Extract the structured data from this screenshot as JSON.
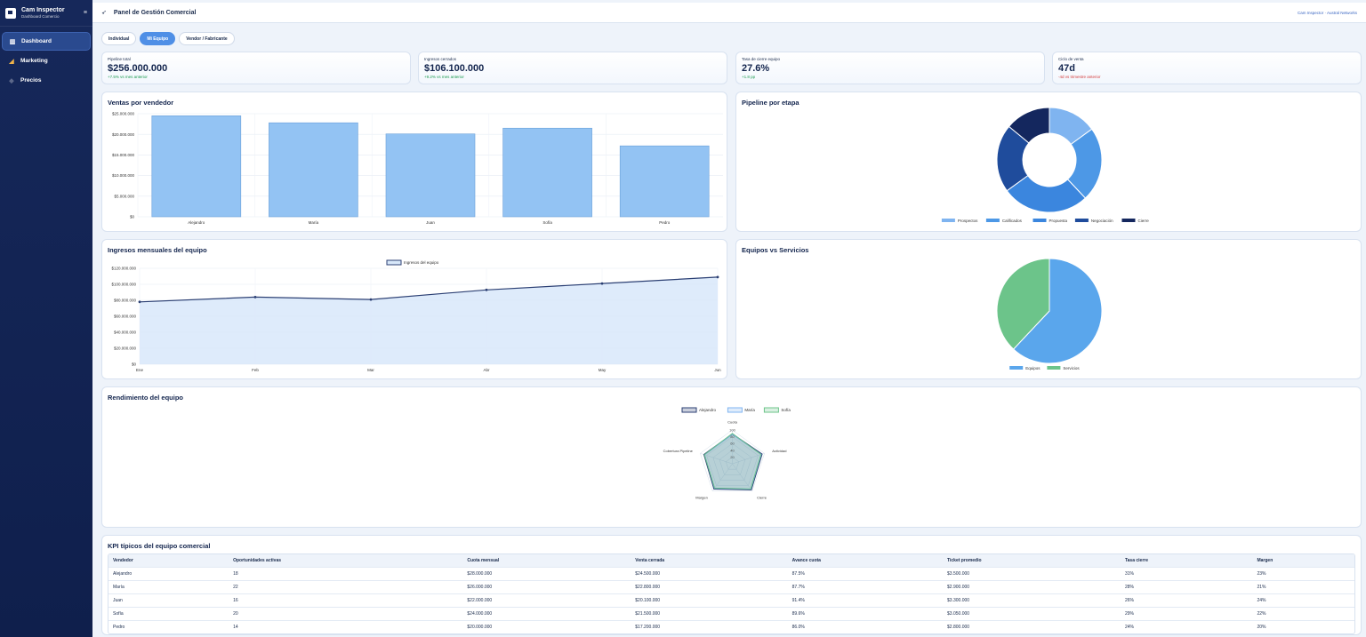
{
  "sidebar": {
    "brand_title": "Cam Inspector",
    "brand_sub": "Dashboard Comercio",
    "menu_icon": "hamburger-icon",
    "items": [
      {
        "label": "Dashboard",
        "icon": "bar-chart-icon",
        "active": true
      },
      {
        "label": "Marketing",
        "icon": "megaphone-icon",
        "active": false
      },
      {
        "label": "Precios",
        "icon": "tag-icon",
        "active": false
      }
    ]
  },
  "topbar": {
    "title": "Panel de Gestión Comercial",
    "right_text": "Cam Inspector · Austral Networks"
  },
  "tabs": [
    {
      "label": "Individual",
      "active": false
    },
    {
      "label": "Mi Equipo",
      "active": true
    },
    {
      "label": "Vendor / Fabricante",
      "active": false
    }
  ],
  "kpis": [
    {
      "label": "Pipeline total",
      "value": "$256.000.000",
      "delta": "+7.5% vs mes anterior",
      "negative": false
    },
    {
      "label": "Ingresos cerrados",
      "value": "$106.100.000",
      "delta": "+9.2% vs mes anterior",
      "negative": false
    },
    {
      "label": "Tasa de cierre equipo",
      "value": "27.6%",
      "delta": "+1.8 pp",
      "negative": false
    },
    {
      "label": "Ciclo de venta",
      "value": "47d",
      "delta": "-4d vs trimestre anterior",
      "negative": true
    }
  ],
  "colors": {
    "accent": "#4f8fe6",
    "bar": "#93c3f3",
    "line": "#2b3f73",
    "area": "#d8e8fa"
  },
  "chart_data": [
    {
      "type": "bar",
      "title": "Ventas por vendedor",
      "categories": [
        "Alejandro",
        "María",
        "Juan",
        "Sofía",
        "Pedro"
      ],
      "values": [
        24500000,
        22800000,
        20100000,
        21500000,
        17200000
      ],
      "ylim": [
        0,
        25000000
      ],
      "yticks": [
        "$25.000.000",
        "$20.000.000",
        "$15.000.000",
        "$10.000.000",
        "$5.000.000",
        "$0"
      ],
      "grid": true
    },
    {
      "type": "pie",
      "title": "Pipeline por etapa",
      "donut": true,
      "labels": [
        "Prospectos",
        "Calificados",
        "Propuesta",
        "Negociación",
        "Cierre"
      ],
      "values": [
        15,
        23,
        27,
        21,
        14
      ],
      "colors": [
        "#7fb4f0",
        "#4d98e6",
        "#3b86de",
        "#1f4c9c",
        "#14275e"
      ],
      "legend": "bottom"
    },
    {
      "type": "area",
      "title": "Ingresos mensuales del equipo",
      "x": [
        "Ene",
        "Feb",
        "Mar",
        "Abr",
        "May",
        "Jun"
      ],
      "series": [
        {
          "name": "Ingresos del equipo",
          "values": [
            78000000,
            84000000,
            81000000,
            93000000,
            101000000,
            109000000
          ]
        }
      ],
      "ylim": [
        0,
        120000000
      ],
      "yticks": [
        "$120.000.000",
        "$100.000.000",
        "$80.000.000",
        "$60.000.000",
        "$40.000.000",
        "$20.000.000",
        "$0"
      ],
      "legend": "top",
      "grid": true
    },
    {
      "type": "pie",
      "title": "Equipos vs Servicios",
      "labels": [
        "Equipos",
        "Servicios"
      ],
      "values": [
        62,
        38
      ],
      "colors": [
        "#5aa6ec",
        "#6cc48a"
      ],
      "legend": "bottom"
    },
    {
      "type": "radar",
      "title": "Rendimiento del equipo",
      "axes": [
        "Cuota",
        "Actividad",
        "Cierre",
        "Margen",
        "Cobertura Pipeline"
      ],
      "rticks": [
        "100",
        "80",
        "60",
        "40",
        "20"
      ],
      "rmax": 100,
      "series": [
        {
          "name": "Alejandro",
          "values": [
            88,
            92,
            95,
            92,
            88
          ]
        },
        {
          "name": "María",
          "values": [
            87,
            90,
            93,
            90,
            86
          ]
        },
        {
          "name": "Sofía",
          "values": [
            90,
            89,
            92,
            89,
            87
          ]
        }
      ],
      "series_colors": [
        "#2b3f73",
        "#7fb4f0",
        "#6cc48a"
      ],
      "legend": "top"
    }
  ],
  "table": {
    "title": "KPI típicos del equipo comercial",
    "headers": [
      "Vendedor",
      "Oportunidades activas",
      "Cuota mensual",
      "Venta cerrada",
      "Avance cuota",
      "Ticket promedio",
      "Tasa cierre",
      "Margen"
    ],
    "rows": [
      [
        "Alejandro",
        "18",
        "$28.000.000",
        "$24.500.000",
        "87.5%",
        "$3.500.000",
        "31%",
        "23%"
      ],
      [
        "María",
        "22",
        "$26.000.000",
        "$22.800.000",
        "87.7%",
        "$2.900.000",
        "28%",
        "21%"
      ],
      [
        "Juan",
        "16",
        "$22.000.000",
        "$20.100.000",
        "91.4%",
        "$3.300.000",
        "26%",
        "24%"
      ],
      [
        "Sofía",
        "20",
        "$24.000.000",
        "$21.500.000",
        "89.6%",
        "$3.050.000",
        "29%",
        "22%"
      ],
      [
        "Pedro",
        "14",
        "$20.000.000",
        "$17.200.000",
        "86.0%",
        "$2.800.000",
        "24%",
        "20%"
      ]
    ]
  }
}
